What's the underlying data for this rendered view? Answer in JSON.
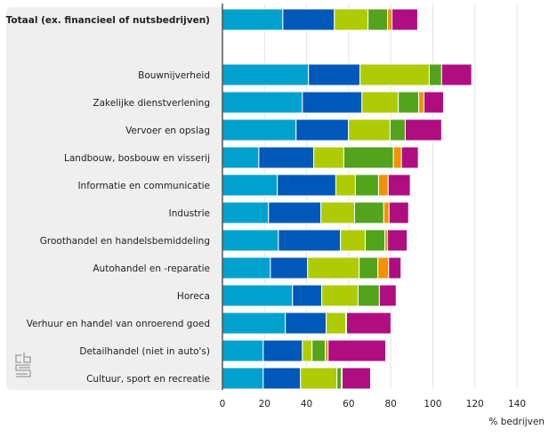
{
  "chart_data": {
    "type": "bar",
    "orientation": "horizontal",
    "stacked": true,
    "title": "",
    "xlabel": "% bedrijven",
    "ylabel": "",
    "xlim": [
      0,
      140
    ],
    "xticks": [
      0,
      20,
      40,
      60,
      80,
      100,
      120,
      140
    ],
    "tick_labels": [
      "0",
      "20",
      "40",
      "60",
      "80",
      "100",
      "120",
      "140"
    ],
    "grid": true,
    "legend": "none",
    "categories": [
      "Totaal (ex. financieel of nutsbedrijven)",
      "",
      "Bouwnijverheid",
      "Zakelijke dienstverlening",
      "Vervoer en opslag",
      "Landbouw, bosbouw en visserij",
      "Informatie en communicatie",
      "Industrie",
      "Groothandel en handelsbemiddeling",
      "Autohandel en -reparatie",
      "Horeca",
      "Verhuur en handel van onroerend goed",
      "Detailhandel (niet in auto's)",
      "Cultuur, sport en recreatie"
    ],
    "bold_categories": [
      0
    ],
    "series": [
      {
        "name": "series-1",
        "color": "#00a1cd",
        "values": [
          28.7,
          null,
          40.9,
          38.0,
          35.0,
          17.3,
          26.1,
          21.9,
          26.6,
          22.8,
          33.3,
          29.9,
          19.4,
          19.4
        ]
      },
      {
        "name": "series-2",
        "color": "#0058b8",
        "values": [
          24.5,
          null,
          24.5,
          28.3,
          24.9,
          26.1,
          27.8,
          24.9,
          29.5,
          17.7,
          13.9,
          19.4,
          18.6,
          17.7
        ]
      },
      {
        "name": "series-3",
        "color": "#afcb05",
        "values": [
          16.0,
          null,
          32.9,
          17.3,
          19.8,
          14.3,
          9.3,
          16.0,
          11.8,
          24.5,
          17.3,
          9.3,
          4.6,
          17.3
        ]
      },
      {
        "name": "series-4",
        "color": "#53a31d",
        "values": [
          9.3,
          null,
          5.9,
          9.7,
          7.2,
          23.6,
          11.0,
          13.9,
          9.3,
          8.9,
          10.1,
          0,
          6.3,
          2.1
        ]
      },
      {
        "name": "series-5",
        "color": "#f39200",
        "values": [
          2.1,
          null,
          0,
          2.5,
          0,
          3.8,
          4.6,
          2.5,
          1.3,
          5.1,
          0,
          0.4,
          1.3,
          0.4
        ]
      },
      {
        "name": "series-6",
        "color": "#af0e80",
        "values": [
          12.2,
          null,
          14.3,
          9.3,
          17.3,
          8.0,
          10.5,
          9.3,
          9.3,
          5.9,
          8.0,
          21.1,
          27.4,
          13.5
        ]
      }
    ]
  },
  "logo": {
    "name": "cbs"
  }
}
